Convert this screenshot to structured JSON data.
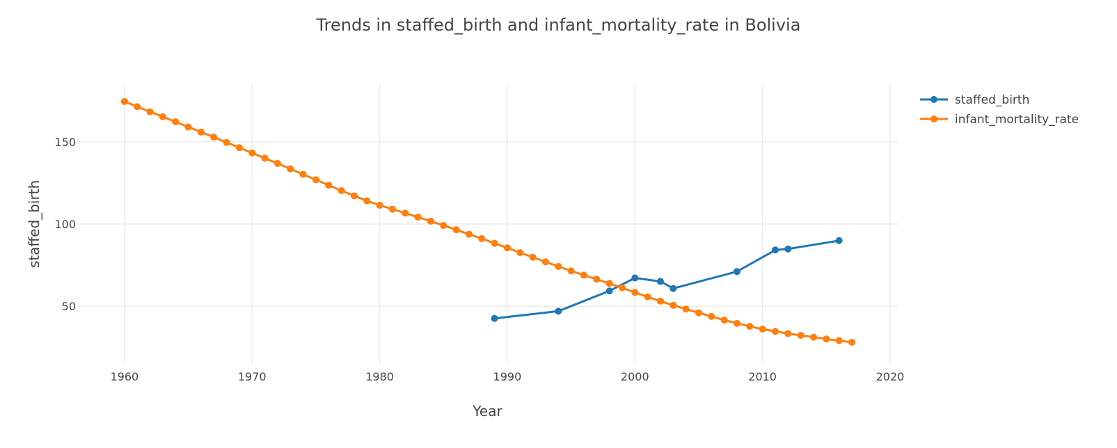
{
  "chart_data": {
    "type": "line",
    "title": "Trends in staffed_birth and infant_mortality_rate in Bolivia",
    "xlabel": "Year",
    "ylabel": "staffed_birth",
    "xlim": [
      1956.3,
      2020.6
    ],
    "ylim": [
      15,
      185
    ],
    "xticks": [
      "1960",
      "1970",
      "1980",
      "1990",
      "2000",
      "2010",
      "2020"
    ],
    "yticks": [
      "50",
      "100",
      "150"
    ],
    "grid": true,
    "legend_position": "top-right",
    "series": [
      {
        "name": "staffed_birth",
        "color": "#1f77b4",
        "x": [
          1989,
          1994,
          1998,
          2000,
          2002,
          2003,
          2008,
          2011,
          2012,
          2016
        ],
        "y": [
          42.6,
          47.0,
          59.3,
          67.2,
          65.1,
          60.8,
          71.1,
          84.2,
          84.8,
          89.9
        ]
      },
      {
        "name": "infant_mortality_rate",
        "color": "#ff7f0e",
        "x": [
          1960,
          1961,
          1962,
          1963,
          1964,
          1965,
          1966,
          1967,
          1968,
          1969,
          1970,
          1971,
          1972,
          1973,
          1974,
          1975,
          1976,
          1977,
          1978,
          1979,
          1980,
          1981,
          1982,
          1983,
          1984,
          1985,
          1986,
          1987,
          1988,
          1989,
          1990,
          1991,
          1992,
          1993,
          1994,
          1995,
          1996,
          1997,
          1998,
          1999,
          2000,
          2001,
          2002,
          2003,
          2004,
          2005,
          2006,
          2007,
          2008,
          2009,
          2010,
          2011,
          2012,
          2013,
          2014,
          2015,
          2016,
          2017
        ],
        "y": [
          174.5,
          171.3,
          168.2,
          165.2,
          162.1,
          159.0,
          155.9,
          152.8,
          149.6,
          146.4,
          143.2,
          140.0,
          136.8,
          133.5,
          130.2,
          126.9,
          123.6,
          120.3,
          117.1,
          114.1,
          111.4,
          109.0,
          106.6,
          104.2,
          101.7,
          99.1,
          96.5,
          93.8,
          91.1,
          88.3,
          85.5,
          82.6,
          79.8,
          77.0,
          74.2,
          71.5,
          68.9,
          66.4,
          63.9,
          61.2,
          58.4,
          55.7,
          53.1,
          50.6,
          48.3,
          46.0,
          43.8,
          41.6,
          39.6,
          37.8,
          36.1,
          34.7,
          33.4,
          32.3,
          31.2,
          30.1,
          29.1,
          28.1
        ]
      }
    ]
  }
}
